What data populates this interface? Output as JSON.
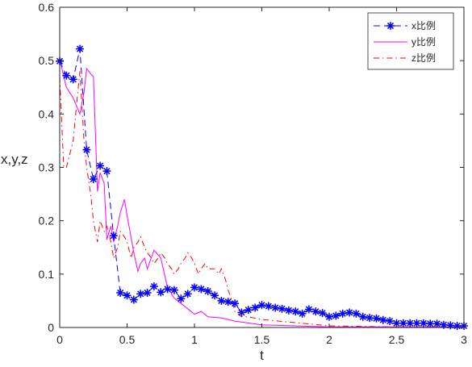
{
  "chart_data": {
    "type": "line",
    "title": "",
    "xlabel": "t",
    "ylabel": "x,y,z",
    "xlim": [
      0,
      3
    ],
    "ylim": [
      0,
      0.6
    ],
    "grid": false,
    "legend_position": "top-right",
    "x_ticks": [
      "0",
      "0.5",
      "1",
      "1.5",
      "2",
      "2.5",
      "3"
    ],
    "y_ticks": [
      "0",
      "0.1",
      "0.2",
      "0.3",
      "0.4",
      "0.5",
      "0.6"
    ],
    "series": [
      {
        "name": "x比例",
        "color": "#0000ff",
        "line_style": "dashed",
        "marker": "asterisk",
        "x": [
          0,
          0.05,
          0.1,
          0.15,
          0.2,
          0.25,
          0.3,
          0.35,
          0.4,
          0.45,
          0.5,
          0.55,
          0.6,
          0.65,
          0.7,
          0.75,
          0.8,
          0.85,
          0.9,
          0.95,
          1.0,
          1.05,
          1.1,
          1.15,
          1.2,
          1.25,
          1.3,
          1.35,
          1.4,
          1.45,
          1.5,
          1.55,
          1.6,
          1.65,
          1.7,
          1.75,
          1.8,
          1.85,
          1.9,
          1.95,
          2.0,
          2.05,
          2.1,
          2.15,
          2.2,
          2.25,
          2.3,
          2.35,
          2.4,
          2.45,
          2.5,
          2.55,
          2.6,
          2.65,
          2.7,
          2.75,
          2.8,
          2.85,
          2.9,
          2.95,
          3.0
        ],
        "y": [
          0.499,
          0.472,
          0.465,
          0.522,
          0.333,
          0.278,
          0.303,
          0.293,
          0.172,
          0.065,
          0.06,
          0.052,
          0.063,
          0.065,
          0.077,
          0.066,
          0.072,
          0.07,
          0.054,
          0.063,
          0.075,
          0.072,
          0.068,
          0.06,
          0.05,
          0.048,
          0.045,
          0.028,
          0.033,
          0.037,
          0.042,
          0.04,
          0.037,
          0.035,
          0.032,
          0.03,
          0.026,
          0.034,
          0.03,
          0.027,
          0.02,
          0.022,
          0.026,
          0.028,
          0.026,
          0.02,
          0.018,
          0.017,
          0.014,
          0.012,
          0.008,
          0.008,
          0.008,
          0.008,
          0.008,
          0.007,
          0.007,
          0.005,
          0.004,
          0.003,
          0.003
        ]
      },
      {
        "name": "y比例",
        "color": "#ff00ff",
        "line_style": "solid",
        "marker": "none",
        "x": [
          0,
          0.03,
          0.05,
          0.1,
          0.15,
          0.18,
          0.2,
          0.23,
          0.25,
          0.28,
          0.3,
          0.33,
          0.35,
          0.38,
          0.4,
          0.43,
          0.45,
          0.48,
          0.5,
          0.55,
          0.58,
          0.6,
          0.63,
          0.65,
          0.7,
          0.75,
          0.8,
          0.85,
          0.9,
          0.95,
          1.0,
          1.05,
          1.1,
          1.2,
          1.3,
          1.5,
          2.0,
          2.5,
          3.0
        ],
        "y": [
          0.505,
          0.47,
          0.45,
          0.43,
          0.4,
          0.44,
          0.485,
          0.475,
          0.47,
          0.255,
          0.29,
          0.27,
          0.165,
          0.19,
          0.16,
          0.19,
          0.215,
          0.24,
          0.21,
          0.14,
          0.105,
          0.12,
          0.13,
          0.11,
          0.145,
          0.13,
          0.075,
          0.055,
          0.045,
          0.035,
          0.025,
          0.03,
          0.02,
          0.018,
          0.012,
          0.005,
          0.001,
          0.001,
          0.001
        ]
      },
      {
        "name": "z比例",
        "color": "#ff0000",
        "line_style": "dash-dot",
        "marker": "none",
        "x": [
          0,
          0.03,
          0.05,
          0.08,
          0.1,
          0.13,
          0.15,
          0.18,
          0.2,
          0.23,
          0.25,
          0.28,
          0.3,
          0.33,
          0.35,
          0.38,
          0.4,
          0.43,
          0.45,
          0.48,
          0.5,
          0.53,
          0.55,
          0.58,
          0.6,
          0.63,
          0.65,
          0.68,
          0.7,
          0.73,
          0.75,
          0.78,
          0.8,
          0.83,
          0.85,
          0.88,
          0.9,
          0.93,
          0.95,
          0.98,
          1.0,
          1.03,
          1.05,
          1.08,
          1.1,
          1.13,
          1.15,
          1.18,
          1.2,
          1.23,
          1.25,
          1.28,
          1.3,
          1.35,
          1.4,
          1.5,
          2.0,
          2.5,
          3.0
        ],
        "y": [
          0.47,
          0.3,
          0.3,
          0.33,
          0.35,
          0.43,
          0.48,
          0.35,
          0.3,
          0.25,
          0.2,
          0.16,
          0.2,
          0.18,
          0.19,
          0.16,
          0.13,
          0.15,
          0.18,
          0.17,
          0.16,
          0.13,
          0.15,
          0.16,
          0.17,
          0.15,
          0.14,
          0.13,
          0.12,
          0.13,
          0.14,
          0.13,
          0.12,
          0.11,
          0.1,
          0.11,
          0.12,
          0.13,
          0.14,
          0.13,
          0.12,
          0.1,
          0.11,
          0.12,
          0.11,
          0.11,
          0.11,
          0.1,
          0.11,
          0.09,
          0.07,
          0.05,
          0.03,
          0.02,
          0.02,
          0.015,
          0.003,
          0.001,
          0.0
        ]
      }
    ]
  }
}
